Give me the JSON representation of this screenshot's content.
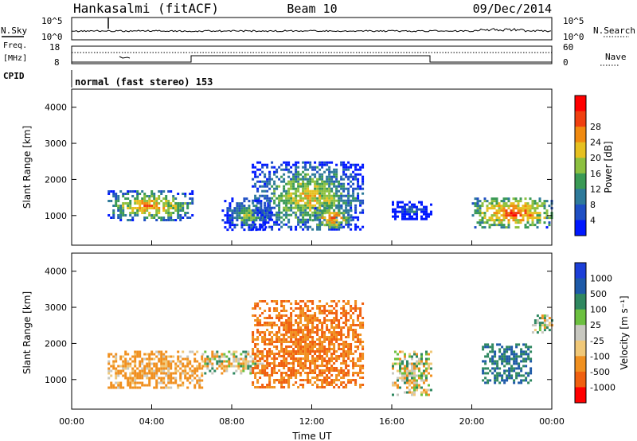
{
  "header": {
    "station": "Hankasalmi (fitACF)",
    "beam": "Beam 10",
    "date": "09/Dec/2014"
  },
  "nsky_panel": {
    "label": "N.Sky",
    "right_label": "N.Search",
    "ticks_left": [
      "10^5",
      "10^0"
    ],
    "ticks_right": [
      "10^5",
      "10^0"
    ]
  },
  "freq_panel": {
    "label_line1": "Freq.",
    "label_line2": "[MHz]",
    "left_ticks": [
      "18",
      "8"
    ],
    "right_ticks": [
      "60",
      "0"
    ],
    "right_label": "Nave"
  },
  "cpid": {
    "label": "CPID",
    "mode": "normal (fast stereo) 153"
  },
  "chart_data": [
    {
      "type": "heatmap",
      "name": "power",
      "ylabel": "Slant Range [km]",
      "yticks": [
        "1000",
        "2000",
        "3000",
        "4000"
      ],
      "ylim": [
        180,
        4500
      ],
      "xlim": [
        0,
        24
      ],
      "colorbar": {
        "label": "Power [dB]",
        "ticks": [
          "4",
          "8",
          "12",
          "16",
          "20",
          "24",
          "28"
        ],
        "colors": [
          "#0018ff",
          "#1f4fc4",
          "#2e7a9a",
          "#3a9a55",
          "#8cc040",
          "#e6c020",
          "#f08a10",
          "#f04010",
          "#ff0000"
        ]
      },
      "regions": [
        {
          "t0": 1.8,
          "t1": 6.0,
          "r0": 900,
          "r1": 1700,
          "level": 26
        },
        {
          "t0": 7.5,
          "t1": 10.0,
          "r0": 600,
          "r1": 1500,
          "level": 18
        },
        {
          "t0": 9.0,
          "t1": 14.5,
          "r0": 600,
          "r1": 2500,
          "level": 22
        },
        {
          "t0": 12.0,
          "t1": 14.0,
          "r0": 650,
          "r1": 1300,
          "level": 28
        },
        {
          "t0": 16.0,
          "t1": 18.0,
          "r0": 900,
          "r1": 1400,
          "level": 10
        },
        {
          "t0": 20.0,
          "t1": 24.0,
          "r0": 700,
          "r1": 1500,
          "level": 30
        }
      ]
    },
    {
      "type": "heatmap",
      "name": "velocity",
      "ylabel": "Slant Range [km]",
      "yticks": [
        "1000",
        "2000",
        "3000",
        "4000"
      ],
      "ylim": [
        180,
        4500
      ],
      "xlim": [
        0,
        24
      ],
      "xticks": [
        "00:00",
        "04:00",
        "08:00",
        "12:00",
        "16:00",
        "20:00",
        "00:00"
      ],
      "xlabel": "Time UT",
      "colorbar": {
        "label": "Velocity [m s⁻¹]",
        "ticks": [
          "1000",
          "500",
          "100",
          "25",
          "-25",
          "-100",
          "-500",
          "-1000"
        ],
        "colors": [
          "#1c3fd8",
          "#1e5aa8",
          "#2f8860",
          "#6cc040",
          "#c8c8c0",
          "#f0c878",
          "#f09020",
          "#f06010",
          "#ff0000"
        ]
      },
      "regions": [
        {
          "t0": 1.8,
          "t1": 6.5,
          "r0": 800,
          "r1": 1800,
          "velocity": -100
        },
        {
          "t0": 6.5,
          "t1": 9.5,
          "r0": 1200,
          "r1": 1800,
          "velocity": 0
        },
        {
          "t0": 9.0,
          "t1": 14.5,
          "r0": 800,
          "r1": 3200,
          "velocity": -300
        },
        {
          "t0": 16.0,
          "t1": 18.0,
          "r0": 600,
          "r1": 1800,
          "velocity": 0
        },
        {
          "t0": 20.5,
          "t1": 23.0,
          "r0": 900,
          "r1": 2000,
          "velocity": 300
        },
        {
          "t0": 23.0,
          "t1": 24.0,
          "r0": 2300,
          "r1": 2800,
          "velocity": 0
        }
      ]
    }
  ]
}
